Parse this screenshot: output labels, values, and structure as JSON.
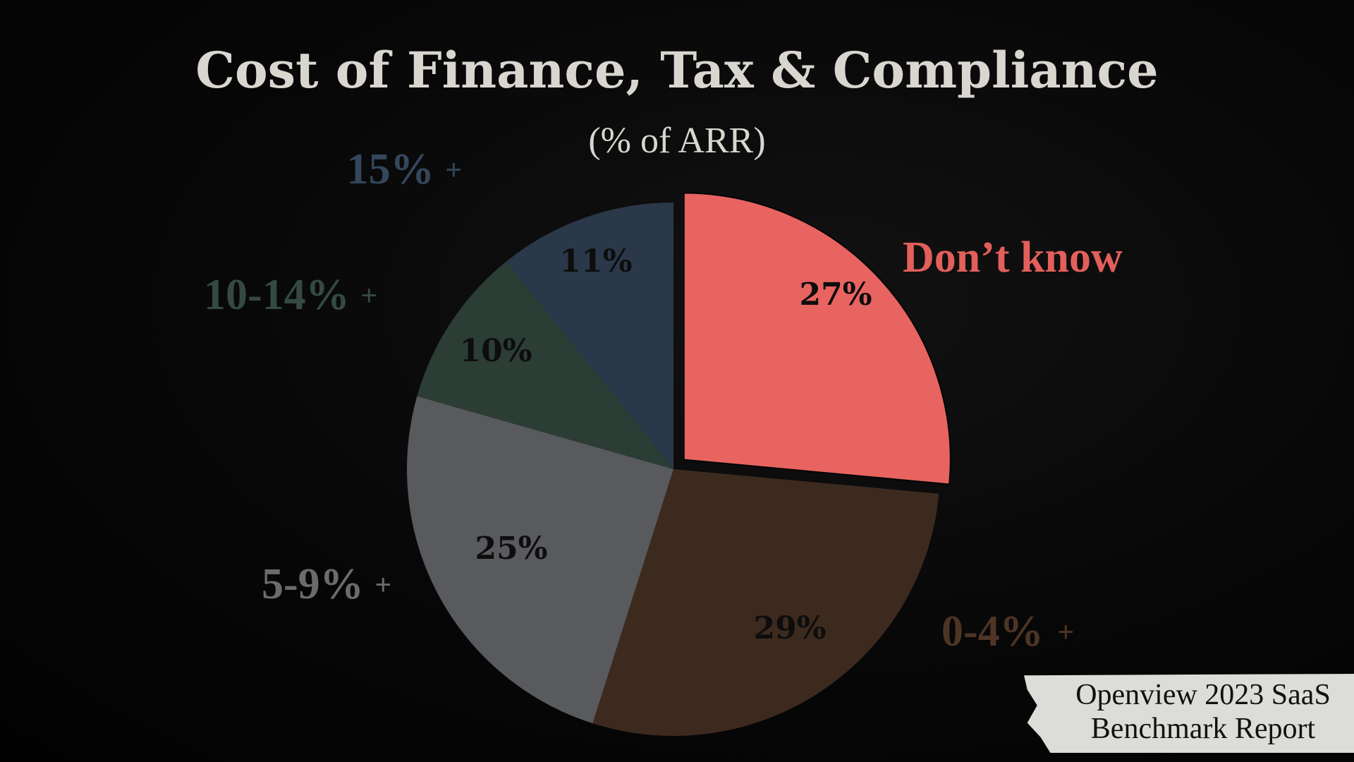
{
  "title": "Cost of Finance, Tax & Compliance",
  "subtitle": "(% of ARR)",
  "source": {
    "line1": "Openview 2023 SaaS",
    "line2": "Benchmark Report"
  },
  "chart_data": {
    "type": "pie",
    "title": "Cost of Finance, Tax & Compliance",
    "subtitle": "(% of ARR)",
    "start_angle_deg": 0,
    "direction": "clockwise",
    "slices": [
      {
        "label": "Don’t know",
        "value": 27,
        "value_label": "27%",
        "plus": "",
        "color": "#e86461",
        "label_color": "#e25f5b",
        "exploded": true
      },
      {
        "label": "0-4%",
        "value": 29,
        "value_label": "29%",
        "plus": "+",
        "color": "#3d2a1f",
        "label_color": "#4d3424",
        "exploded": false
      },
      {
        "label": "5-9%",
        "value": 25,
        "value_label": "25%",
        "plus": "+",
        "color": "#595a5d",
        "label_color": "#6b6b6d",
        "exploded": false
      },
      {
        "label": "10-14%",
        "value": 10,
        "value_label": "10%",
        "plus": "+",
        "color": "#2c3d35",
        "label_color": "#344a40",
        "exploded": false
      },
      {
        "label": "15%",
        "value": 11,
        "value_label": "11%",
        "plus": "+",
        "color": "#2a3849",
        "label_color": "#33465c",
        "exploded": false
      }
    ]
  }
}
